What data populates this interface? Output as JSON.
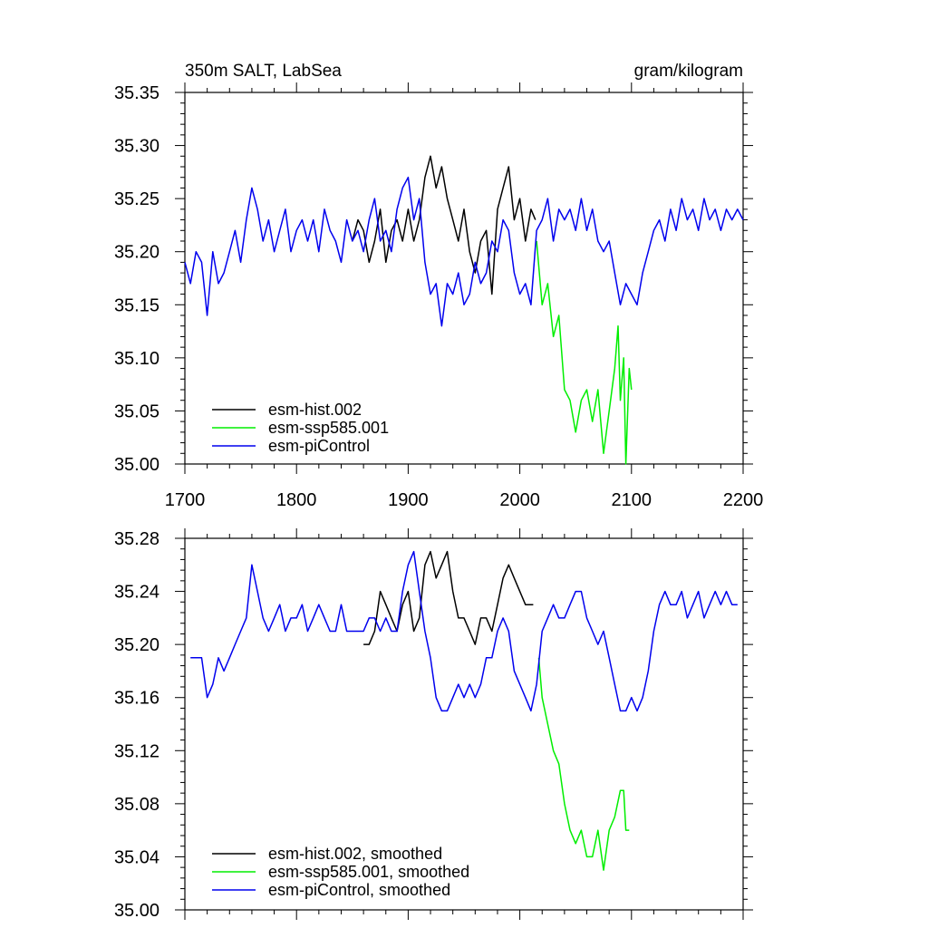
{
  "chart_data": [
    {
      "type": "line",
      "title_left": "350m SALT, LabSea",
      "title_right": "gram/kilogram",
      "xlabel": "",
      "ylabel": "",
      "xlim": [
        1700,
        2200
      ],
      "ylim": [
        35.0,
        35.35
      ],
      "x_ticks": [
        1700,
        1800,
        1900,
        2000,
        2100,
        2200
      ],
      "x_tick_labels": [
        "1700",
        "1800",
        "1900",
        "2000",
        "2100",
        "2200"
      ],
      "y_ticks": [
        35.0,
        35.05,
        35.1,
        35.15,
        35.2,
        35.25,
        35.3,
        35.35
      ],
      "y_tick_labels": [
        "35.00",
        "35.05",
        "35.10",
        "35.15",
        "35.20",
        "35.25",
        "35.30",
        "35.35"
      ],
      "legend_position": "bottom-left",
      "series": [
        {
          "name": "esm-hist.002",
          "color": "#000000",
          "x": [
            1850,
            1855,
            1860,
            1865,
            1870,
            1875,
            1880,
            1885,
            1890,
            1895,
            1900,
            1905,
            1910,
            1915,
            1920,
            1925,
            1930,
            1935,
            1940,
            1945,
            1950,
            1955,
            1960,
            1965,
            1970,
            1975,
            1980,
            1985,
            1990,
            1995,
            2000,
            2005,
            2010,
            2014
          ],
          "y": [
            35.21,
            35.23,
            35.22,
            35.19,
            35.21,
            35.24,
            35.19,
            35.22,
            35.23,
            35.21,
            35.24,
            35.21,
            35.23,
            35.27,
            35.29,
            35.26,
            35.28,
            35.25,
            35.23,
            35.21,
            35.24,
            35.2,
            35.18,
            35.21,
            35.22,
            35.16,
            35.24,
            35.26,
            35.28,
            35.23,
            35.25,
            35.21,
            35.24,
            35.23
          ]
        },
        {
          "name": "esm-ssp585.001",
          "color": "#00ee00",
          "x": [
            2015,
            2020,
            2025,
            2030,
            2035,
            2040,
            2045,
            2050,
            2055,
            2060,
            2065,
            2070,
            2075,
            2080,
            2085,
            2088,
            2090,
            2093,
            2095,
            2098,
            2100
          ],
          "y": [
            35.21,
            35.15,
            35.17,
            35.12,
            35.14,
            35.07,
            35.06,
            35.03,
            35.06,
            35.07,
            35.04,
            35.07,
            35.01,
            35.05,
            35.09,
            35.13,
            35.06,
            35.1,
            35.0,
            35.09,
            35.07
          ]
        },
        {
          "name": "esm-piControl",
          "color": "#0000ee",
          "x": [
            1700,
            1705,
            1710,
            1715,
            1720,
            1725,
            1730,
            1735,
            1740,
            1745,
            1750,
            1755,
            1760,
            1765,
            1770,
            1775,
            1780,
            1785,
            1790,
            1795,
            1800,
            1805,
            1810,
            1815,
            1820,
            1825,
            1830,
            1835,
            1840,
            1845,
            1850,
            1855,
            1860,
            1865,
            1870,
            1875,
            1880,
            1885,
            1890,
            1895,
            1900,
            1905,
            1910,
            1915,
            1920,
            1925,
            1930,
            1935,
            1940,
            1945,
            1950,
            1955,
            1960,
            1965,
            1970,
            1975,
            1980,
            1985,
            1990,
            1995,
            2000,
            2005,
            2010,
            2015,
            2020,
            2025,
            2030,
            2035,
            2040,
            2045,
            2050,
            2055,
            2060,
            2065,
            2070,
            2075,
            2080,
            2085,
            2090,
            2095,
            2100,
            2105,
            2110,
            2115,
            2120,
            2125,
            2130,
            2135,
            2140,
            2145,
            2150,
            2155,
            2160,
            2165,
            2170,
            2175,
            2180,
            2185,
            2190,
            2195,
            2200
          ],
          "y": [
            35.19,
            35.17,
            35.2,
            35.19,
            35.14,
            35.2,
            35.17,
            35.18,
            35.2,
            35.22,
            35.19,
            35.23,
            35.26,
            35.24,
            35.21,
            35.23,
            35.2,
            35.22,
            35.24,
            35.2,
            35.22,
            35.23,
            35.21,
            35.23,
            35.2,
            35.24,
            35.22,
            35.21,
            35.19,
            35.23,
            35.21,
            35.22,
            35.2,
            35.23,
            35.25,
            35.21,
            35.22,
            35.2,
            35.24,
            35.26,
            35.27,
            35.23,
            35.25,
            35.19,
            35.16,
            35.17,
            35.13,
            35.17,
            35.16,
            35.18,
            35.15,
            35.16,
            35.19,
            35.17,
            35.18,
            35.21,
            35.2,
            35.23,
            35.22,
            35.18,
            35.16,
            35.17,
            35.15,
            35.22,
            35.23,
            35.25,
            35.21,
            35.24,
            35.23,
            35.24,
            35.22,
            35.25,
            35.22,
            35.24,
            35.21,
            35.2,
            35.21,
            35.18,
            35.15,
            35.17,
            35.16,
            35.15,
            35.18,
            35.2,
            35.22,
            35.23,
            35.21,
            35.24,
            35.22,
            35.25,
            35.23,
            35.24,
            35.22,
            35.25,
            35.23,
            35.24,
            35.22,
            35.24,
            35.23,
            35.24,
            35.23
          ]
        }
      ]
    },
    {
      "type": "line",
      "xlabel": "",
      "ylabel": "",
      "xlim": [
        1700,
        2200
      ],
      "ylim": [
        35.0,
        35.28
      ],
      "x_ticks": [
        1700,
        1800,
        1900,
        2000,
        2100,
        2200
      ],
      "y_ticks": [
        35.0,
        35.04,
        35.08,
        35.12,
        35.16,
        35.2,
        35.24,
        35.28
      ],
      "y_tick_labels": [
        "35.00",
        "35.04",
        "35.08",
        "35.12",
        "35.16",
        "35.20",
        "35.24",
        "35.28"
      ],
      "legend_position": "bottom-left",
      "series": [
        {
          "name": "esm-hist.002, smoothed",
          "color": "#000000",
          "x": [
            1860,
            1865,
            1870,
            1875,
            1880,
            1885,
            1890,
            1895,
            1900,
            1905,
            1910,
            1915,
            1920,
            1925,
            1930,
            1935,
            1940,
            1945,
            1950,
            1955,
            1960,
            1965,
            1970,
            1975,
            1980,
            1985,
            1990,
            1995,
            2000,
            2005,
            2010,
            2012
          ],
          "y": [
            35.2,
            35.2,
            35.21,
            35.24,
            35.23,
            35.22,
            35.21,
            35.23,
            35.24,
            35.21,
            35.22,
            35.26,
            35.27,
            35.25,
            35.26,
            35.27,
            35.24,
            35.22,
            35.22,
            35.21,
            35.2,
            35.22,
            35.22,
            35.21,
            35.23,
            35.25,
            35.26,
            35.25,
            35.24,
            35.23,
            35.23,
            35.23
          ]
        },
        {
          "name": "esm-ssp585.001, smoothed",
          "color": "#00ee00",
          "x": [
            2017,
            2020,
            2025,
            2030,
            2035,
            2040,
            2045,
            2050,
            2055,
            2060,
            2065,
            2070,
            2075,
            2080,
            2085,
            2090,
            2093,
            2095,
            2098
          ],
          "y": [
            35.19,
            35.16,
            35.14,
            35.12,
            35.11,
            35.08,
            35.06,
            35.05,
            35.06,
            35.04,
            35.04,
            35.06,
            35.03,
            35.06,
            35.07,
            35.09,
            35.09,
            35.06,
            35.06
          ]
        },
        {
          "name": "esm-piControl, smoothed",
          "color": "#0000ee",
          "x": [
            1705,
            1710,
            1715,
            1720,
            1725,
            1730,
            1735,
            1740,
            1745,
            1750,
            1755,
            1760,
            1765,
            1770,
            1775,
            1780,
            1785,
            1790,
            1795,
            1800,
            1805,
            1810,
            1815,
            1820,
            1825,
            1830,
            1835,
            1840,
            1845,
            1850,
            1855,
            1860,
            1865,
            1870,
            1875,
            1880,
            1885,
            1890,
            1895,
            1900,
            1905,
            1910,
            1915,
            1920,
            1925,
            1930,
            1935,
            1940,
            1945,
            1950,
            1955,
            1960,
            1965,
            1970,
            1975,
            1980,
            1985,
            1990,
            1995,
            2000,
            2005,
            2010,
            2015,
            2020,
            2025,
            2030,
            2035,
            2040,
            2045,
            2050,
            2055,
            2060,
            2065,
            2070,
            2075,
            2080,
            2085,
            2090,
            2095,
            2100,
            2105,
            2110,
            2115,
            2120,
            2125,
            2130,
            2135,
            2140,
            2145,
            2150,
            2155,
            2160,
            2165,
            2170,
            2175,
            2180,
            2185,
            2190,
            2195
          ],
          "y": [
            35.19,
            35.19,
            35.19,
            35.16,
            35.17,
            35.19,
            35.18,
            35.19,
            35.2,
            35.21,
            35.22,
            35.26,
            35.24,
            35.22,
            35.21,
            35.22,
            35.23,
            35.21,
            35.22,
            35.22,
            35.23,
            35.21,
            35.22,
            35.23,
            35.22,
            35.21,
            35.21,
            35.23,
            35.21,
            35.21,
            35.21,
            35.21,
            35.22,
            35.22,
            35.21,
            35.22,
            35.21,
            35.21,
            35.24,
            35.26,
            35.27,
            35.24,
            35.21,
            35.19,
            35.16,
            35.15,
            35.15,
            35.16,
            35.17,
            35.16,
            35.17,
            35.16,
            35.17,
            35.19,
            35.19,
            35.21,
            35.22,
            35.21,
            35.18,
            35.17,
            35.16,
            35.15,
            35.17,
            35.21,
            35.22,
            35.23,
            35.22,
            35.22,
            35.23,
            35.24,
            35.24,
            35.22,
            35.21,
            35.2,
            35.21,
            35.19,
            35.17,
            35.15,
            35.15,
            35.16,
            35.15,
            35.16,
            35.18,
            35.21,
            35.23,
            35.24,
            35.23,
            35.23,
            35.24,
            35.22,
            35.23,
            35.24,
            35.22,
            35.23,
            35.24,
            35.23,
            35.24,
            35.23,
            35.23
          ]
        }
      ]
    }
  ]
}
